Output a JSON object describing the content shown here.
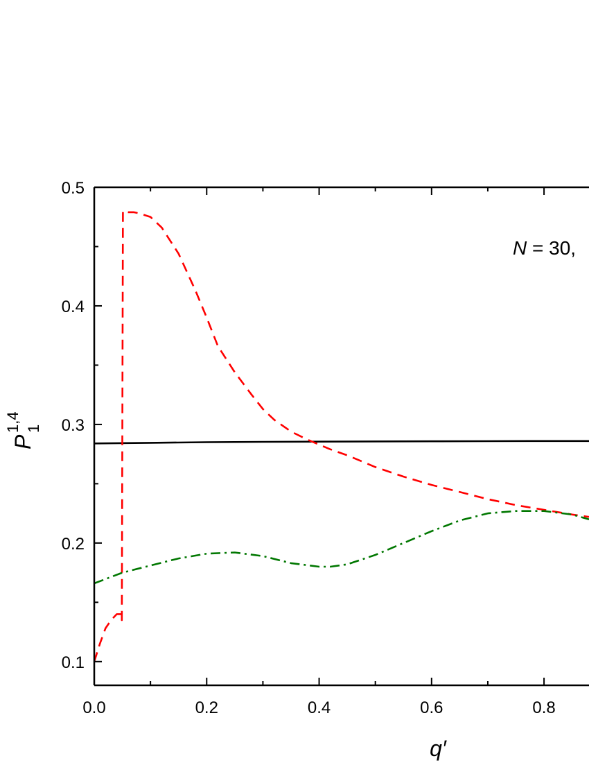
{
  "chart_data": {
    "type": "line",
    "xlabel": "q′",
    "ylabel": {
      "base": "P",
      "sup": "1,4",
      "sub": "1"
    },
    "annotation": {
      "var": "N",
      "text": " = 30,"
    },
    "xlim": [
      0.0,
      0.88
    ],
    "ylim": [
      0.08,
      0.5
    ],
    "xticks": [
      0.0,
      0.2,
      0.4,
      0.6,
      0.8
    ],
    "xtick_labels": [
      "0.0",
      "0.2",
      "0.4",
      "0.6",
      "0.8"
    ],
    "yticks": [
      0.1,
      0.2,
      0.3,
      0.4,
      0.5
    ],
    "ytick_labels": [
      "0.1",
      "0.2",
      "0.3",
      "0.4",
      "0.5"
    ],
    "grid": false,
    "series": [
      {
        "style": "solid",
        "color": "#000000",
        "x": [
          0.0,
          0.1,
          0.2,
          0.3,
          0.4,
          0.5,
          0.6,
          0.7,
          0.8,
          0.88
        ],
        "y": [
          0.284,
          0.2845,
          0.285,
          0.2853,
          0.2855,
          0.2857,
          0.2858,
          0.2859,
          0.286,
          0.286
        ]
      },
      {
        "style": "dashed",
        "color": "#ff0000",
        "x": [
          0.0,
          0.01,
          0.02,
          0.03,
          0.04,
          0.049,
          0.049,
          0.051,
          0.06,
          0.07,
          0.08,
          0.1,
          0.12,
          0.15,
          0.18,
          0.2,
          0.22,
          0.25,
          0.28,
          0.3,
          0.32,
          0.35,
          0.38,
          0.4,
          0.42,
          0.45,
          0.48,
          0.5,
          0.55,
          0.6,
          0.65,
          0.7,
          0.75,
          0.8,
          0.85,
          0.88
        ],
        "y": [
          0.1,
          0.115,
          0.128,
          0.135,
          0.14,
          0.14,
          0.135,
          0.48,
          0.479,
          0.479,
          0.478,
          0.475,
          0.466,
          0.444,
          0.413,
          0.39,
          0.366,
          0.344,
          0.325,
          0.313,
          0.304,
          0.294,
          0.287,
          0.283,
          0.279,
          0.274,
          0.268,
          0.264,
          0.256,
          0.249,
          0.243,
          0.237,
          0.232,
          0.228,
          0.224,
          0.222
        ]
      },
      {
        "style": "dashdot",
        "color": "#007700",
        "x": [
          0.0,
          0.05,
          0.1,
          0.15,
          0.2,
          0.25,
          0.3,
          0.35,
          0.4,
          0.42,
          0.45,
          0.5,
          0.55,
          0.6,
          0.65,
          0.7,
          0.75,
          0.8,
          0.85,
          0.88
        ],
        "y": [
          0.166,
          0.175,
          0.181,
          0.187,
          0.191,
          0.192,
          0.189,
          0.183,
          0.18,
          0.18,
          0.182,
          0.19,
          0.2,
          0.21,
          0.219,
          0.225,
          0.227,
          0.227,
          0.224,
          0.22
        ]
      }
    ]
  }
}
